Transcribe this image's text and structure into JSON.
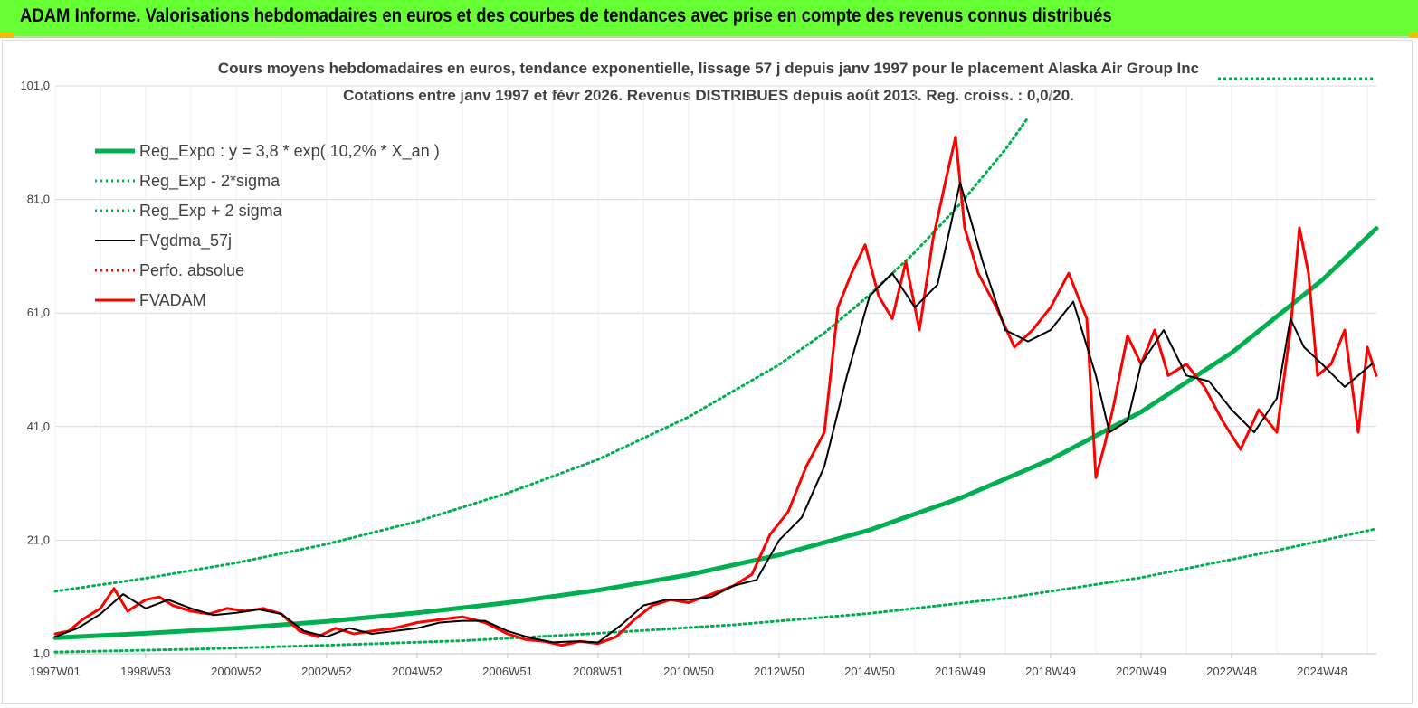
{
  "header": {
    "title": "ADAM Informe. Valorisations hebdomadaires en euros et des courbes de tendances avec prise en compte des revenus connus distribués",
    "background_color": "#66ff33"
  },
  "chart_data": {
    "type": "line",
    "title": "Cours moyens hebdomadaires en euros, tendance exponentielle, lissage 57 j depuis janv 1997 pour le placement Alaska Air Group Inc",
    "subtitle": "Cotations entre janv 1997 et févr 2026. Revenus DISTRIBUES depuis août 2013. Reg. croiss. : 0,0/20.",
    "xlabel": "",
    "ylabel": "",
    "ylim": [
      1.0,
      101.0
    ],
    "xlim": [
      1997.0,
      2026.2
    ],
    "yticks": [
      "1,0",
      "21,0",
      "41,0",
      "61,0",
      "81,0",
      "101,0"
    ],
    "xticks": [
      "1997W01",
      "1998W53",
      "2000W52",
      "2002W52",
      "2004W52",
      "2006W51",
      "2008W51",
      "2010W50",
      "2012W50",
      "2014W50",
      "2016W49",
      "2018W49",
      "2020W49",
      "2022W48",
      "2024W48"
    ],
    "grid": true,
    "legend_position": "top-left",
    "series": [
      {
        "name": "Reg_Expo : y = 3,8 * exp( 10,2% *  X_an )",
        "color": "#00b050",
        "style": "solid-thick",
        "x": [
          1997.0,
          1999.0,
          2001.0,
          2003.0,
          2005.0,
          2007.0,
          2009.0,
          2011.0,
          2013.0,
          2015.0,
          2017.0,
          2019.0,
          2021.0,
          2023.0,
          2025.0,
          2026.2
        ],
        "y": [
          3.8,
          4.6,
          5.5,
          6.7,
          8.2,
          10.0,
          12.2,
          14.9,
          18.4,
          22.8,
          28.4,
          35.2,
          43.6,
          54.0,
          66.8,
          75.9
        ]
      },
      {
        "name": "Reg_Exp - 2*sigma",
        "color": "#00b050",
        "style": "dotted",
        "x": [
          1997.0,
          2000.0,
          2003.0,
          2006.0,
          2009.0,
          2012.0,
          2015.0,
          2018.0,
          2021.0,
          2024.0,
          2026.2
        ],
        "y": [
          1.3,
          1.8,
          2.5,
          3.3,
          4.6,
          6.1,
          8.1,
          10.8,
          14.4,
          19.2,
          23.0
        ]
      },
      {
        "name": "Reg_Exp + 2 sigma",
        "color": "#00b050",
        "style": "dotted",
        "x": [
          1997.0,
          1999.0,
          2001.0,
          2003.0,
          2005.0,
          2007.0,
          2009.0,
          2011.0,
          2013.0,
          2014.0,
          2015.0,
          2016.0,
          2017.0,
          2018.0,
          2018.5
        ],
        "y": [
          12.0,
          14.3,
          17.0,
          20.3,
          24.3,
          29.3,
          35.2,
          42.7,
          51.9,
          57.5,
          64.2,
          71.7,
          80.2,
          89.8,
          95.4
        ]
      },
      {
        "name": "FVgdma_57j",
        "color": "#000000",
        "style": "solid",
        "x": [
          1997.0,
          1997.5,
          1998.0,
          1998.5,
          1999.0,
          1999.5,
          2000.0,
          2000.5,
          2001.0,
          2001.5,
          2002.0,
          2002.5,
          2003.0,
          2003.5,
          2004.0,
          2004.5,
          2005.0,
          2005.5,
          2006.0,
          2006.5,
          2007.0,
          2007.5,
          2008.0,
          2008.5,
          2009.0,
          2009.5,
          2010.0,
          2010.5,
          2011.0,
          2011.5,
          2012.0,
          2012.5,
          2013.0,
          2013.5,
          2014.0,
          2014.5,
          2015.0,
          2015.5,
          2016.0,
          2016.5,
          2017.0,
          2017.5,
          2018.0,
          2018.5,
          2019.0,
          2019.5,
          2020.0,
          2020.3,
          2020.7,
          2021.0,
          2021.5,
          2022.0,
          2022.5,
          2023.0,
          2023.5,
          2024.0,
          2024.3,
          2024.6,
          2025.0,
          2025.5,
          2025.8,
          2026.1
        ],
        "y": [
          4.0,
          5.5,
          8.0,
          11.5,
          9.0,
          10.5,
          9.0,
          7.8,
          8.2,
          8.8,
          8.0,
          5.0,
          4.0,
          5.5,
          4.5,
          5.0,
          5.5,
          6.5,
          6.8,
          6.8,
          5.0,
          3.8,
          3.0,
          3.2,
          3.0,
          6.0,
          9.5,
          10.5,
          10.5,
          11.0,
          13.0,
          14.0,
          21.0,
          25.0,
          34.0,
          50.0,
          64.0,
          68.0,
          62.0,
          66.0,
          84.0,
          70.0,
          58.0,
          56.0,
          58.0,
          63.0,
          50.0,
          40.0,
          42.0,
          52.0,
          58.0,
          50.0,
          49.0,
          44.0,
          40.0,
          46.0,
          60.0,
          55.0,
          52.0,
          48.0,
          50.0,
          52.0
        ]
      },
      {
        "name": "Perfo. absolue",
        "color": "#ff0000",
        "style": "dotted",
        "x": [],
        "y": []
      },
      {
        "name": "FVADAM",
        "color": "#ff0000",
        "style": "solid-thick",
        "x": [
          1997.0,
          1997.3,
          1997.6,
          1998.0,
          1998.3,
          1998.6,
          1999.0,
          1999.3,
          1999.6,
          2000.0,
          2000.4,
          2000.8,
          2001.2,
          2001.6,
          2002.0,
          2002.4,
          2002.8,
          2003.2,
          2003.6,
          2004.0,
          2004.5,
          2005.0,
          2005.5,
          2006.0,
          2006.5,
          2007.0,
          2007.4,
          2007.8,
          2008.2,
          2008.6,
          2009.0,
          2009.4,
          2009.8,
          2010.2,
          2010.6,
          2011.0,
          2011.5,
          2012.0,
          2012.4,
          2012.8,
          2013.2,
          2013.6,
          2014.0,
          2014.3,
          2014.6,
          2014.9,
          2015.2,
          2015.5,
          2015.8,
          2016.1,
          2016.4,
          2016.7,
          2016.9,
          2017.1,
          2017.4,
          2017.8,
          2018.2,
          2018.6,
          2019.0,
          2019.4,
          2019.8,
          2020.0,
          2020.2,
          2020.4,
          2020.7,
          2021.0,
          2021.3,
          2021.6,
          2022.0,
          2022.4,
          2022.8,
          2023.2,
          2023.6,
          2024.0,
          2024.3,
          2024.5,
          2024.7,
          2024.9,
          2025.2,
          2025.5,
          2025.8,
          2026.0,
          2026.2
        ],
        "y": [
          4.5,
          5.0,
          7.0,
          9.0,
          12.5,
          8.5,
          10.5,
          11.0,
          9.5,
          8.5,
          8.0,
          9.0,
          8.5,
          9.0,
          8.0,
          5.0,
          4.0,
          5.5,
          4.5,
          5.0,
          5.5,
          6.5,
          7.0,
          7.5,
          6.5,
          4.5,
          3.5,
          3.2,
          2.5,
          3.2,
          2.8,
          4.0,
          7.0,
          9.5,
          10.5,
          10.0,
          11.5,
          13.0,
          15.0,
          22.0,
          26.0,
          34.0,
          40.0,
          62.0,
          68.0,
          73.0,
          64.0,
          60.0,
          70.0,
          58.0,
          74.0,
          85.0,
          92.0,
          76.0,
          68.0,
          62.0,
          55.0,
          58.0,
          62.0,
          68.0,
          60.0,
          32.0,
          38.0,
          45.0,
          57.0,
          52.0,
          58.0,
          50.0,
          52.0,
          48.0,
          42.0,
          37.0,
          44.0,
          40.0,
          58.0,
          76.0,
          68.0,
          50.0,
          52.0,
          58.0,
          40.0,
          55.0,
          50.0
        ]
      }
    ]
  }
}
